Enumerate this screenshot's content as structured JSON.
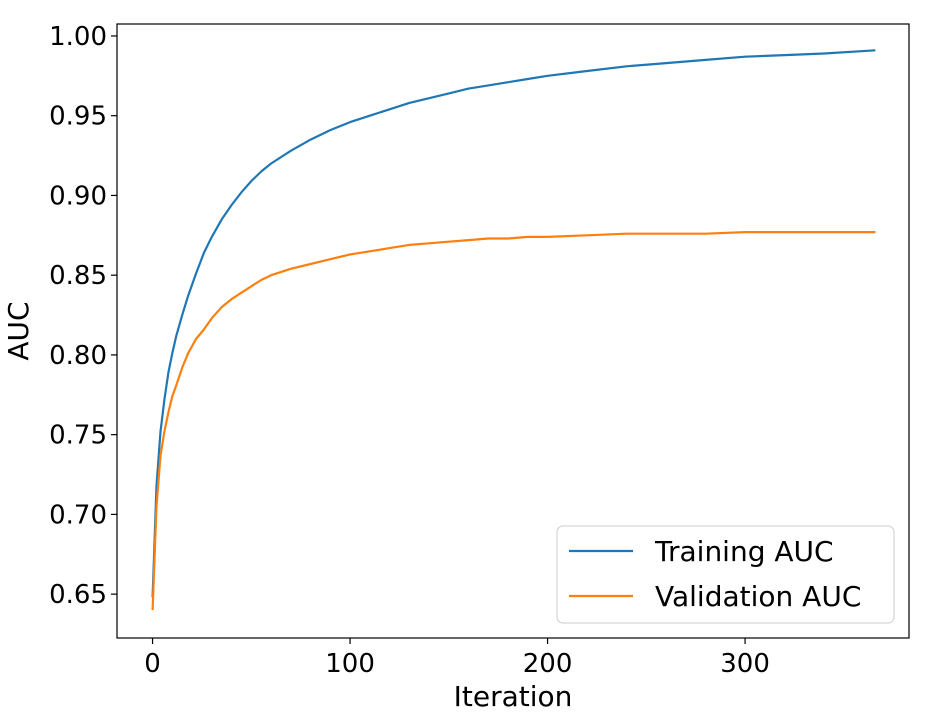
{
  "chart_data": {
    "type": "line",
    "xlabel": "Iteration",
    "ylabel": "AUC",
    "xlim": [
      -18,
      383
    ],
    "ylim": [
      0.6225,
      1.0075
    ],
    "xticks": [
      0,
      100,
      200,
      300
    ],
    "xtick_labels": [
      "0",
      "100",
      "200",
      "300"
    ],
    "yticks": [
      0.65,
      0.7,
      0.75,
      0.8,
      0.85,
      0.9,
      0.95,
      1.0
    ],
    "ytick_labels": [
      "0.65",
      "0.70",
      "0.75",
      "0.80",
      "0.85",
      "0.90",
      "0.95",
      "1.00"
    ],
    "grid": false,
    "legend_position": "lower-right",
    "x": [
      0,
      2,
      4,
      6,
      8,
      10,
      12,
      15,
      18,
      22,
      26,
      30,
      35,
      40,
      45,
      50,
      55,
      60,
      70,
      80,
      90,
      100,
      110,
      120,
      130,
      140,
      150,
      160,
      170,
      180,
      190,
      200,
      220,
      240,
      260,
      280,
      300,
      320,
      340,
      366
    ],
    "series": [
      {
        "name": "Training AUC",
        "color": "#1f77b4",
        "values": [
          0.648,
          0.718,
          0.752,
          0.772,
          0.789,
          0.801,
          0.812,
          0.825,
          0.837,
          0.851,
          0.864,
          0.874,
          0.885,
          0.894,
          0.902,
          0.909,
          0.915,
          0.92,
          0.928,
          0.935,
          0.941,
          0.946,
          0.95,
          0.954,
          0.958,
          0.961,
          0.964,
          0.967,
          0.969,
          0.971,
          0.973,
          0.975,
          0.978,
          0.981,
          0.983,
          0.985,
          0.987,
          0.988,
          0.989,
          0.991
        ]
      },
      {
        "name": "Validation AUC",
        "color": "#ff7f0e",
        "values": [
          0.64,
          0.705,
          0.737,
          0.752,
          0.764,
          0.774,
          0.781,
          0.792,
          0.801,
          0.81,
          0.816,
          0.823,
          0.83,
          0.835,
          0.839,
          0.843,
          0.847,
          0.85,
          0.854,
          0.857,
          0.86,
          0.863,
          0.865,
          0.867,
          0.869,
          0.87,
          0.871,
          0.872,
          0.873,
          0.873,
          0.874,
          0.874,
          0.875,
          0.876,
          0.876,
          0.876,
          0.877,
          0.877,
          0.877,
          0.877
        ]
      }
    ]
  }
}
